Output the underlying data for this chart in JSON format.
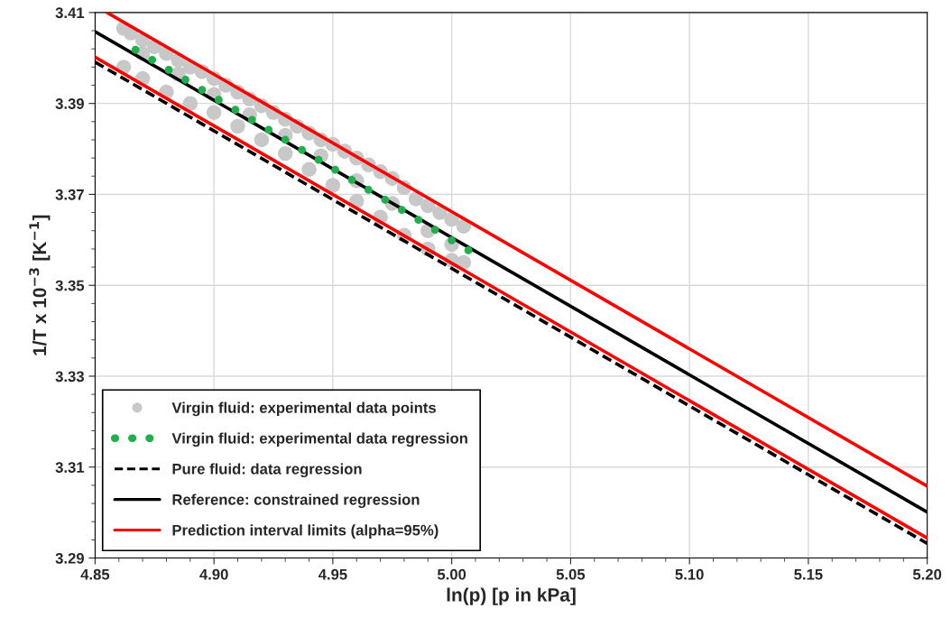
{
  "chart_data": {
    "type": "line",
    "xlabel": "ln(p) [p in kPa]",
    "ylabel": "1/T x 10$^{−3}$ [K$^{−1}$]",
    "xlim": [
      4.85,
      5.2
    ],
    "ylim": [
      3.29,
      3.41
    ],
    "xticks": [
      4.85,
      {
        "value": 4.9,
        "label": "4.90"
      },
      4.95,
      {
        "value": 5.0,
        "label": "5.00"
      },
      5.05,
      {
        "value": 5.1,
        "label": "5.10"
      },
      5.15,
      {
        "value": 5.2,
        "label": "5.20"
      }
    ],
    "yticks": [
      3.29,
      3.31,
      3.33,
      3.35,
      3.37,
      3.39,
      3.41
    ],
    "grid": true,
    "legend": "bottom left",
    "series": [
      {
        "name": "Virgin fluid: experimental data points",
        "type": "scatter",
        "color": "#c8c8c8",
        "x": [
          4.862,
          4.865,
          4.87,
          4.875,
          4.88,
          4.885,
          4.89,
          4.895,
          4.9,
          4.905,
          4.91,
          4.915,
          4.92,
          4.925,
          4.93,
          4.935,
          4.94,
          4.945,
          4.95,
          4.955,
          4.96,
          4.965,
          4.97,
          4.975,
          4.98,
          4.985,
          4.99,
          4.995,
          5.0,
          5.005,
          4.862,
          4.87,
          4.88,
          4.89,
          4.9,
          4.91,
          4.92,
          4.93,
          4.94,
          4.95,
          4.96,
          4.97,
          4.98,
          4.99,
          5.0,
          5.005,
          4.87,
          4.885,
          4.9,
          4.915,
          4.93,
          4.945,
          4.96,
          4.975,
          4.99,
          5.0
        ],
        "values": [
          3.4065,
          3.4055,
          3.404,
          3.4025,
          3.401,
          3.3995,
          3.398,
          3.397,
          3.3955,
          3.394,
          3.3925,
          3.391,
          3.3895,
          3.388,
          3.3865,
          3.385,
          3.3835,
          3.382,
          3.381,
          3.3795,
          3.378,
          3.3765,
          3.375,
          3.3735,
          3.3715,
          3.369,
          3.3675,
          3.366,
          3.3645,
          3.363,
          3.398,
          3.3955,
          3.3925,
          3.39,
          3.388,
          3.385,
          3.382,
          3.379,
          3.3755,
          3.372,
          3.3685,
          3.365,
          3.361,
          3.358,
          3.3555,
          3.355,
          3.401,
          3.3965,
          3.392,
          3.3875,
          3.383,
          3.3785,
          3.373,
          3.368,
          3.362,
          3.359
        ]
      },
      {
        "name": "Virgin fluid: experimental data regression",
        "type": "scatter",
        "color": "#1fb04c",
        "x": [
          4.867,
          4.874,
          4.881,
          4.888,
          4.895,
          4.902,
          4.909,
          4.916,
          4.923,
          4.93,
          4.937,
          4.944,
          4.951,
          4.958,
          4.965,
          4.972,
          4.979,
          4.986,
          4.993,
          5.0,
          5.007
        ],
        "values": [
          3.4018,
          3.3996,
          3.3974,
          3.3952,
          3.393,
          3.3908,
          3.3886,
          3.3864,
          3.3842,
          3.382,
          3.3798,
          3.3776,
          3.3754,
          3.3732,
          3.371,
          3.3688,
          3.3666,
          3.3644,
          3.3622,
          3.3599,
          3.3577
        ]
      },
      {
        "name": "Pure fluid: data regression",
        "line_style": "dashed",
        "color": "#000000",
        "x": [
          4.85,
          5.2
        ],
        "values": [
          3.3991,
          3.2932
        ]
      },
      {
        "name": "Reference: constrained regression",
        "line_style": "solid",
        "color": "#000000",
        "x": [
          4.85,
          5.2
        ],
        "values": [
          3.4058,
          3.3001
        ]
      },
      {
        "name": "Prediction interval limits (alpha=95%)",
        "line_style": "solid",
        "color": "#ff0000",
        "x": [
          4.855,
          5.2
        ],
        "values": [
          3.41,
          3.3058
        ]
      },
      {
        "line_style": "solid",
        "color": "#ff0000",
        "x": [
          4.85,
          5.2
        ],
        "values": [
          3.4002,
          3.2944
        ]
      }
    ]
  }
}
